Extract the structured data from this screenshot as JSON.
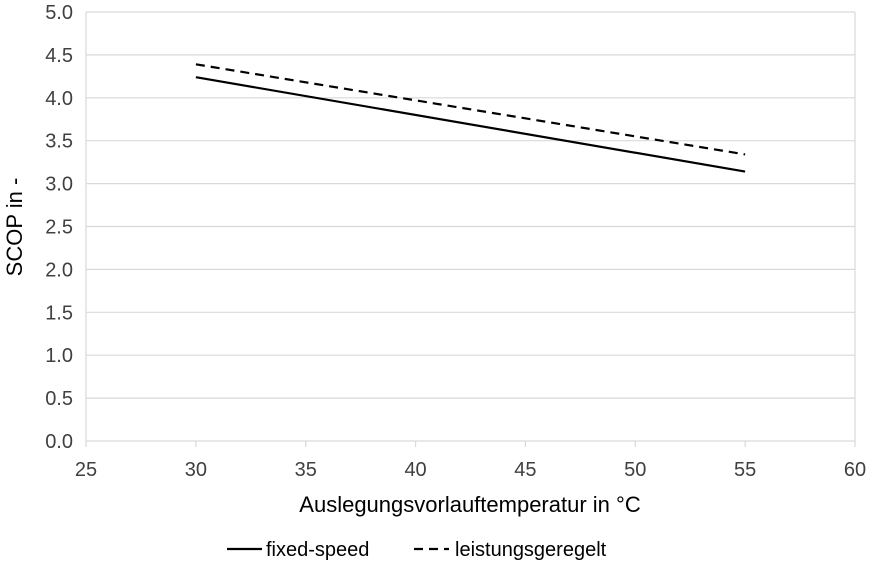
{
  "chart_data": {
    "type": "line",
    "title": "",
    "xlabel": "Auslegungsvorlauftemperatur in °C",
    "ylabel": "SCOP in -",
    "xlim": [
      25,
      60
    ],
    "ylim": [
      0.0,
      5.0
    ],
    "x_ticks": [
      "25",
      "30",
      "35",
      "40",
      "45",
      "50",
      "55",
      "60"
    ],
    "y_ticks": [
      "0.0",
      "0.5",
      "1.0",
      "1.5",
      "2.0",
      "2.5",
      "3.0",
      "3.5",
      "4.0",
      "4.5",
      "5.0"
    ],
    "grid": "horizontal",
    "legend_position": "bottom",
    "series": [
      {
        "name": "fixed-speed",
        "style": "solid",
        "color": "#000000",
        "x": [
          30,
          55
        ],
        "y": [
          4.24,
          3.14
        ]
      },
      {
        "name": "leistungsgeregelt",
        "style": "dashed",
        "color": "#000000",
        "x": [
          30,
          55
        ],
        "y": [
          4.39,
          3.34
        ]
      }
    ]
  },
  "colors": {
    "grid": "#d9d9d9",
    "axis": "#d9d9d9",
    "text": "#404040"
  }
}
